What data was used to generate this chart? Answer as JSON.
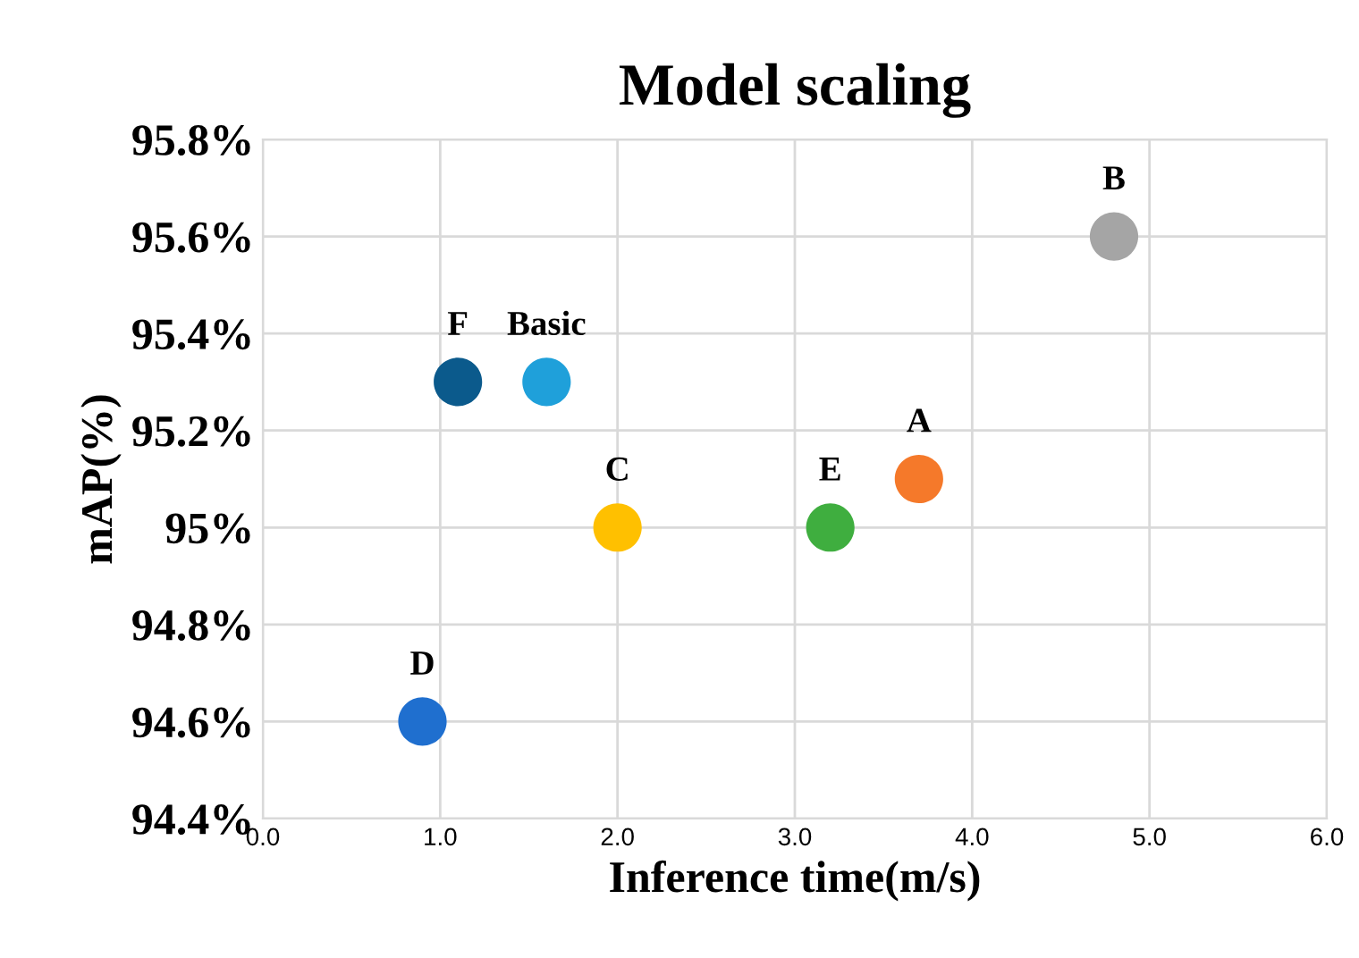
{
  "chart_data": {
    "type": "scatter",
    "title": "Model scaling",
    "xlabel": "Inference time(m/s)",
    "ylabel": "mAP(%)",
    "xlim": [
      0,
      6
    ],
    "xticks": [
      {
        "value": 0,
        "label": "0.0"
      },
      {
        "value": 1,
        "label": "1.0"
      },
      {
        "value": 2,
        "label": "2.0"
      },
      {
        "value": 3,
        "label": "3.0"
      },
      {
        "value": 4,
        "label": "4.0"
      },
      {
        "value": 5,
        "label": "5.0"
      },
      {
        "value": 6,
        "label": "6.0"
      }
    ],
    "ylim": [
      94.4,
      95.8
    ],
    "yticks": [
      {
        "value": 94.4,
        "label": "94.4%"
      },
      {
        "value": 94.6,
        "label": "94.6%"
      },
      {
        "value": 94.8,
        "label": "94.8%"
      },
      {
        "value": 95,
        "label": "95%"
      },
      {
        "value": 95.2,
        "label": "95.2%"
      },
      {
        "value": 95.4,
        "label": "95.4%"
      },
      {
        "value": 95.6,
        "label": "95.6%"
      },
      {
        "value": 95.8,
        "label": "95.8%"
      }
    ],
    "grid": true,
    "marker": "circle",
    "series": [
      {
        "name": "D",
        "color": "#1f6fcf",
        "x": [
          0.9
        ],
        "values": [
          94.6
        ]
      },
      {
        "name": "F",
        "color": "#0b5a8c",
        "x": [
          1.1
        ],
        "values": [
          95.3
        ]
      },
      {
        "name": "Basic",
        "color": "#1fa0da",
        "x": [
          1.6
        ],
        "values": [
          95.3
        ]
      },
      {
        "name": "C",
        "color": "#ffc000",
        "x": [
          2.0
        ],
        "values": [
          95.0
        ]
      },
      {
        "name": "E",
        "color": "#3fae3f",
        "x": [
          3.2
        ],
        "values": [
          95.0
        ]
      },
      {
        "name": "A",
        "color": "#f5792a",
        "x": [
          3.7
        ],
        "values": [
          95.1
        ]
      },
      {
        "name": "B",
        "color": "#a5a5a5",
        "x": [
          4.8
        ],
        "values": [
          95.6
        ]
      }
    ]
  }
}
